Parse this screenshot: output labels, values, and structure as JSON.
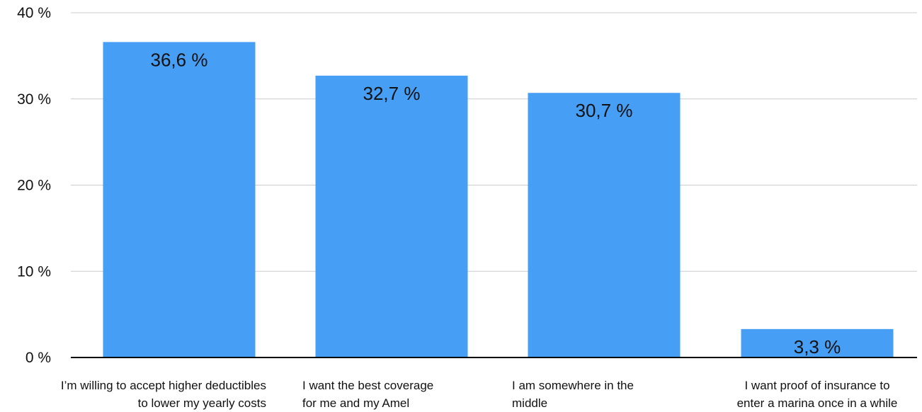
{
  "chart_data": {
    "type": "bar",
    "categories": [
      [
        "I’m willing to accept higher deductibles",
        "to lower my yearly costs"
      ],
      [
        "I want the best coverage",
        " for me and my Amel"
      ],
      [
        "I am somewhere in the",
        "middle"
      ],
      [
        "I want proof of insurance to",
        "enter a marina once in a while"
      ]
    ],
    "category_align": [
      "end",
      "start",
      "start",
      "middle"
    ],
    "values": [
      36.6,
      32.7,
      30.7,
      3.3
    ],
    "value_labels": [
      "36,6 %",
      "32,7 %",
      "30,7 %",
      "3,3 %"
    ],
    "y_ticks": [
      0,
      10,
      20,
      30,
      40
    ],
    "y_tick_labels": [
      "0 %",
      "10 %",
      "20 %",
      "30 %",
      "40 %"
    ],
    "ylim": [
      0,
      40
    ],
    "title": "",
    "xlabel": "",
    "ylabel": "",
    "grid": true,
    "legend": "none",
    "colors": {
      "bar": "#479ef5",
      "grid": "#cccccc",
      "axis": "#000000"
    }
  }
}
